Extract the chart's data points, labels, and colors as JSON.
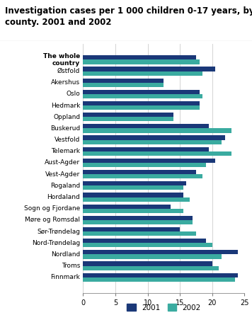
{
  "title": "Investigation cases per 1 000 children 0-17 years, by\ncounty. 2001 and 2002",
  "categories": [
    "The whole\ncountry",
    "Østfold",
    "Akershus",
    "Oslo",
    "Hedmark",
    "Oppland",
    "Buskerud",
    "Vestfold",
    "Telemark",
    "Aust-Agder",
    "Vest-Agder",
    "Rogaland",
    "Hordaland",
    "Sogn og Fjordane",
    "Møre og Romsdal",
    "Sør-Trøndelag",
    "Nord-Trøndelag",
    "Nordland",
    "Troms",
    "Finnmark"
  ],
  "values_2001": [
    17.5,
    20.5,
    12.5,
    18.0,
    18.0,
    14.0,
    19.5,
    22.0,
    19.5,
    20.5,
    17.5,
    16.0,
    15.5,
    13.5,
    17.0,
    15.0,
    19.0,
    24.0,
    20.0,
    24.0
  ],
  "values_2002": [
    18.0,
    18.5,
    12.5,
    18.5,
    18.0,
    14.0,
    23.0,
    21.5,
    23.0,
    19.0,
    18.5,
    15.5,
    16.5,
    15.5,
    17.0,
    17.5,
    20.0,
    21.5,
    21.0,
    23.5
  ],
  "color_2001": "#1a3878",
  "color_2002": "#3aaba0",
  "xlim": [
    0,
    25
  ],
  "xticks": [
    0,
    5,
    10,
    15,
    20,
    25
  ],
  "bar_height": 0.38,
  "legend_2001": "2001",
  "legend_2002": "2002"
}
